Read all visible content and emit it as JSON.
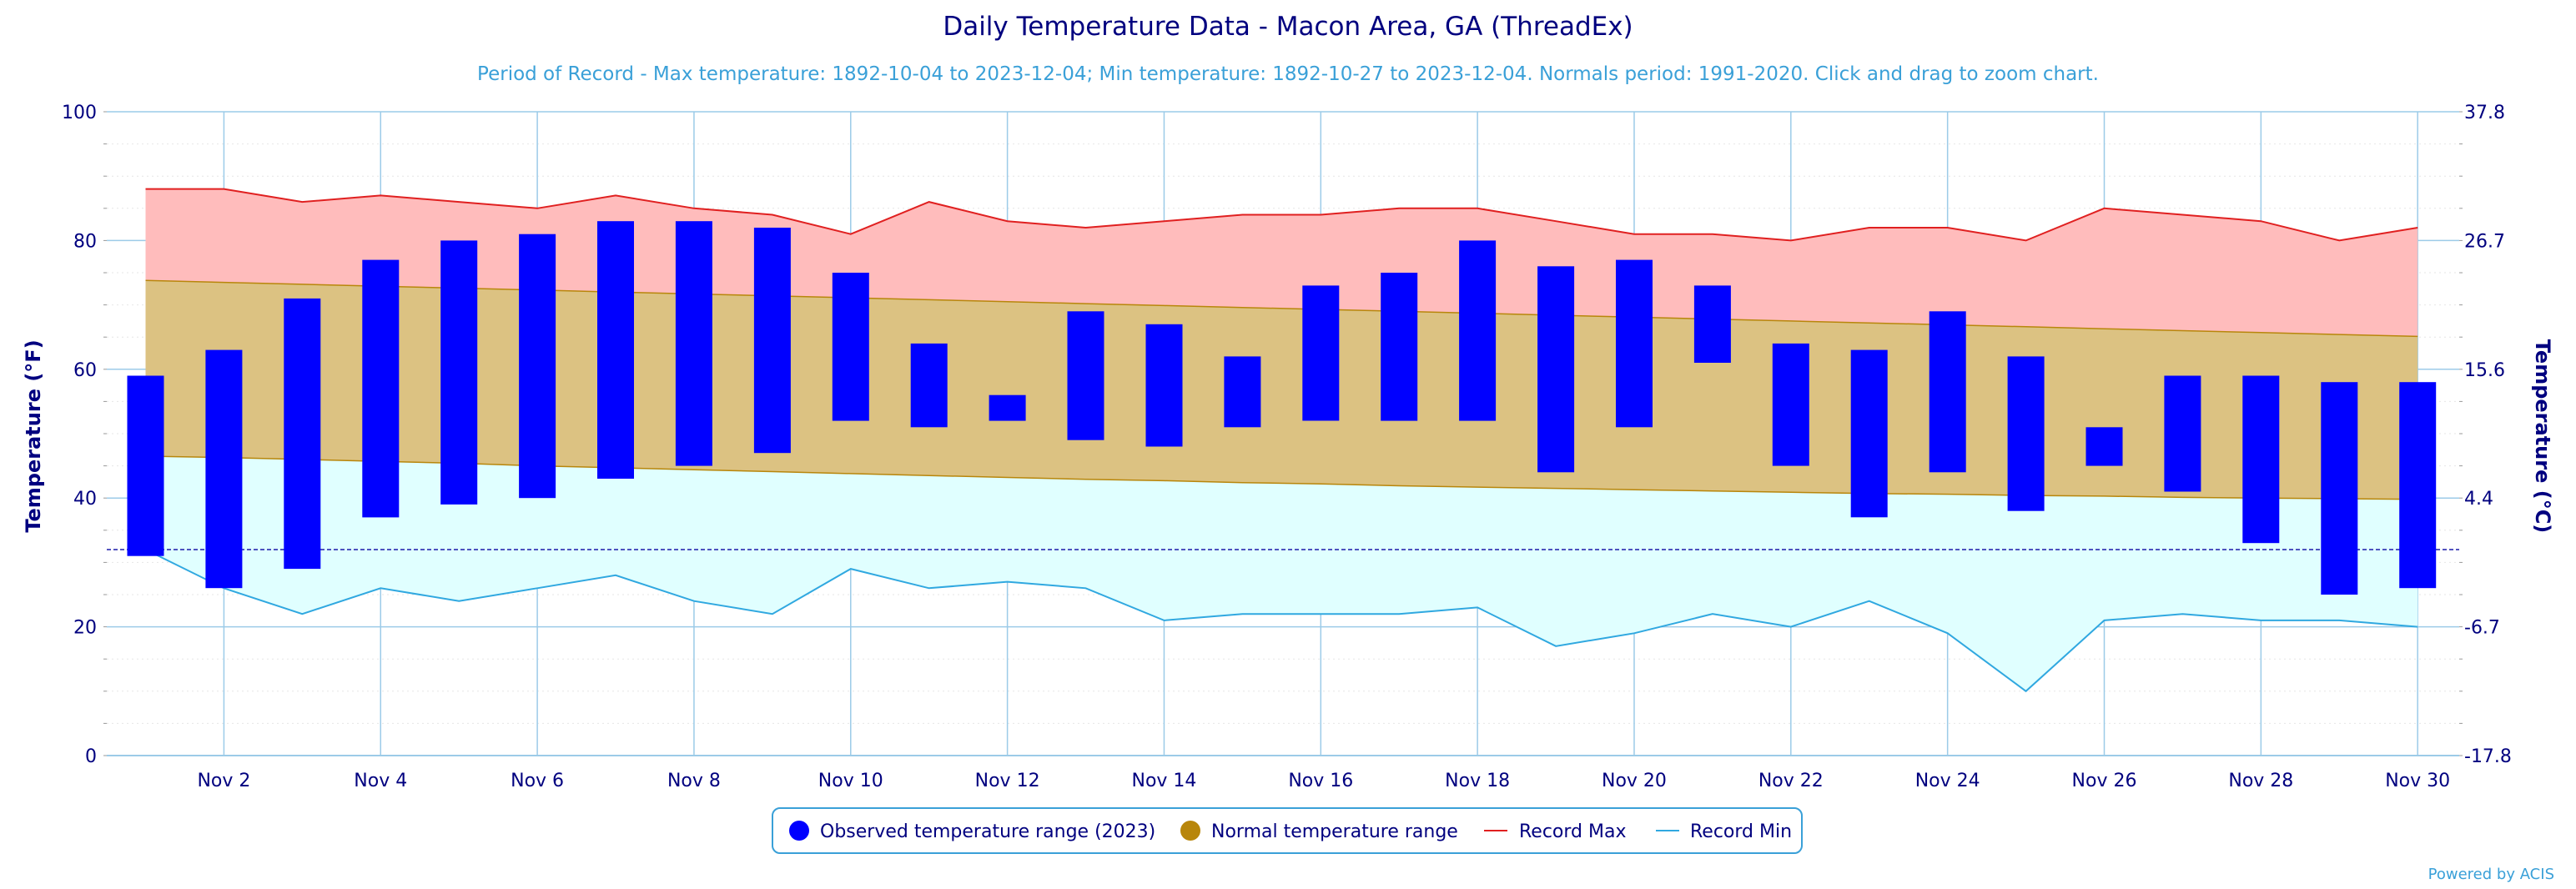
{
  "title": "Daily Temperature Data - Macon Area, GA (ThreadEx)",
  "subtitle": "Period of Record - Max temperature: 1892-10-04 to 2023-12-04; Min temperature: 1892-10-27 to 2023-12-04. Normals period: 1991-2020. Click and drag to zoom chart.",
  "credit": "Powered by ACIS",
  "colors": {
    "observed": "#0000ff",
    "normal_fill": "#dcc282",
    "normal_marker": "#b8860b",
    "normal_line": "#b8860b",
    "record_max_line": "#e02020",
    "record_max_fill": "#ffbcbc",
    "record_min_line": "#30a8e0",
    "record_min_fill": "#e0ffff",
    "grid": "#9ccbe8",
    "text": "#00007f",
    "freeze_line": "#1a1aaa"
  },
  "chart_data": {
    "type": "bar",
    "title": "Daily Temperature Data - Macon Area, GA (ThreadEx)",
    "ylabel": "Temperature (°F)",
    "y2label": "Temperature (°C)",
    "ylim": [
      0,
      100
    ],
    "yticks": [
      "0",
      "20",
      "40",
      "60",
      "80",
      "100"
    ],
    "y2ticks": [
      "-17.8",
      "-6.7",
      "4.4",
      "15.6",
      "26.7",
      "37.8"
    ],
    "x_tick_labels": [
      "Nov 2",
      "Nov 4",
      "Nov 6",
      "Nov 8",
      "Nov 10",
      "Nov 12",
      "Nov 14",
      "Nov 16",
      "Nov 18",
      "Nov 20",
      "Nov 22",
      "Nov 24",
      "Nov 26",
      "Nov 28",
      "Nov 30"
    ],
    "x_days": [
      1,
      2,
      3,
      4,
      5,
      6,
      7,
      8,
      9,
      10,
      11,
      12,
      13,
      14,
      15,
      16,
      17,
      18,
      19,
      20,
      21,
      22,
      23,
      24,
      25,
      26,
      27,
      28,
      29,
      30
    ],
    "freeze_line": 32,
    "grid": true,
    "legend_position": "bottom-center",
    "series": [
      {
        "name": "Observed temperature range (2023)",
        "kind": "range-bar",
        "low": [
          31,
          26,
          29,
          37,
          39,
          40,
          43,
          45,
          47,
          52,
          51,
          52,
          49,
          48,
          51,
          52,
          52,
          52,
          44,
          51,
          61,
          45,
          37,
          44,
          38,
          45,
          41,
          33,
          25,
          26
        ],
        "high": [
          59,
          63,
          71,
          77,
          80,
          81,
          83,
          83,
          82,
          75,
          64,
          56,
          69,
          67,
          62,
          73,
          75,
          80,
          76,
          77,
          73,
          64,
          63,
          69,
          62,
          51,
          59,
          59,
          58,
          58
        ]
      },
      {
        "name": "Normal temperature range",
        "kind": "range-area",
        "low": [
          46.5,
          46.3,
          46.0,
          45.7,
          45.4,
          45.0,
          44.7,
          44.4,
          44.1,
          43.8,
          43.5,
          43.2,
          42.9,
          42.7,
          42.4,
          42.2,
          41.9,
          41.7,
          41.5,
          41.3,
          41.1,
          40.9,
          40.7,
          40.6,
          40.4,
          40.3,
          40.1,
          40.0,
          39.9,
          39.8
        ],
        "high": [
          73.8,
          73.5,
          73.2,
          72.9,
          72.6,
          72.3,
          72.0,
          71.7,
          71.4,
          71.1,
          70.8,
          70.5,
          70.2,
          69.9,
          69.6,
          69.3,
          69.0,
          68.7,
          68.4,
          68.1,
          67.8,
          67.5,
          67.2,
          66.9,
          66.6,
          66.3,
          66.0,
          65.7,
          65.4,
          65.1
        ]
      },
      {
        "name": "Record Max",
        "kind": "line",
        "values": [
          88,
          88,
          86,
          87,
          86,
          85,
          87,
          85,
          84,
          81,
          86,
          83,
          82,
          83,
          84,
          84,
          85,
          85,
          83,
          81,
          81,
          80,
          82,
          82,
          80,
          85,
          84,
          83,
          80,
          82
        ]
      },
      {
        "name": "Record Min",
        "kind": "line",
        "values": [
          32,
          26,
          22,
          26,
          24,
          26,
          28,
          24,
          22,
          29,
          26,
          27,
          26,
          21,
          22,
          22,
          22,
          23,
          17,
          19,
          22,
          20,
          24,
          19,
          10,
          21,
          22,
          21,
          21,
          20
        ]
      }
    ]
  }
}
